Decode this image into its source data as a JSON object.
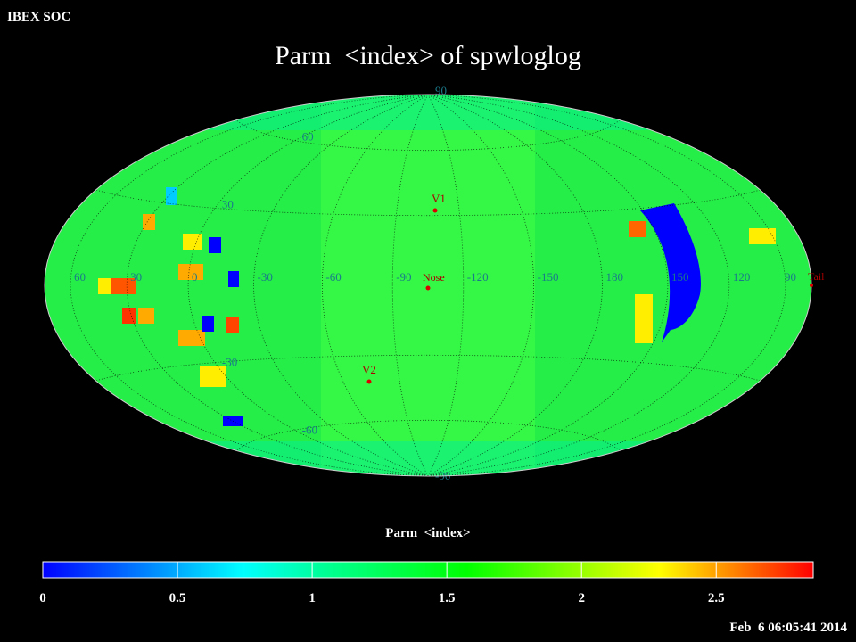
{
  "header": "IBEX SOC",
  "title": "Parm  <index> of spwloglog",
  "map": {
    "center_longitude": -105,
    "longitude_labels": [
      60,
      30,
      0,
      -30,
      -60,
      -90,
      -120,
      -150,
      180,
      150,
      120,
      90
    ],
    "latitude_labels": [
      90,
      60,
      30,
      -30,
      -60,
      -90
    ],
    "markers": {
      "v1": "V1",
      "nose": "Nose",
      "v2": "V2",
      "tail": "Tail"
    }
  },
  "colorbar": {
    "title": "Parm  <index>",
    "range": [
      0,
      2.86
    ],
    "ticks": [
      0,
      0.5,
      1,
      1.5,
      2,
      2.5
    ]
  },
  "timestamp": "Feb  6 06:05:41 2014"
}
